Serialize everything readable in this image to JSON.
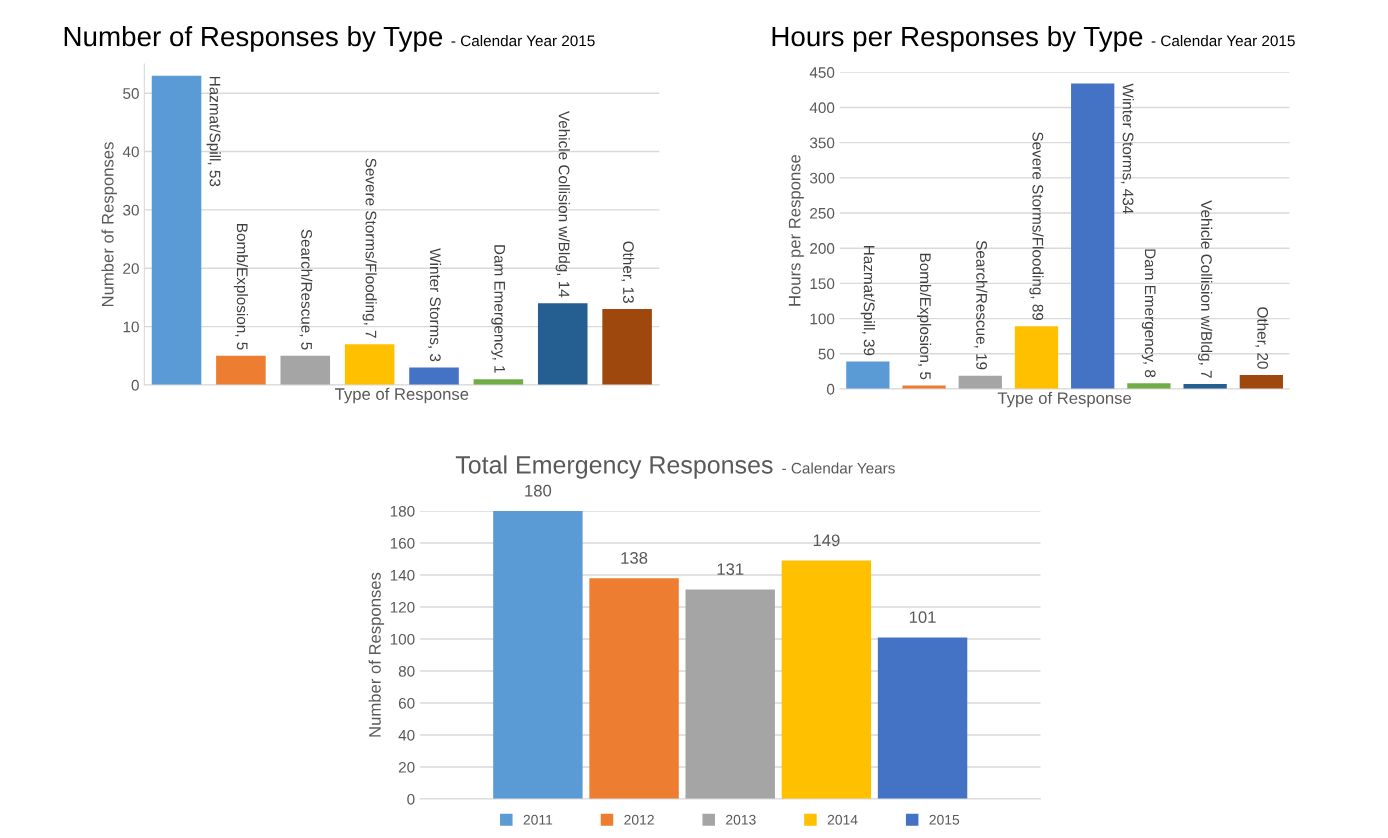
{
  "chart_data": [
    {
      "type": "bar",
      "title": "Number of Responses by Type",
      "subtitle": " - Calendar Year 2015",
      "xlabel": "Type of Response",
      "ylabel": "Number of Responses",
      "categories": [
        null,
        null,
        null,
        null,
        null,
        null,
        null,
        null
      ],
      "values": [
        53,
        5,
        5,
        7,
        3,
        1,
        14,
        13
      ],
      "colors": [
        "#5b9bd5",
        "#ed7d31",
        "#a5a5a5",
        "#ffc000",
        "#4472c4",
        "#70ad47",
        "#255e91",
        "#9e480e"
      ],
      "value_labels": [
        "Hazmat/Spill, 53",
        "Bomb/Explosion, 5",
        "Search/Rescue, 5",
        "Severe Storms/Flooding, 7",
        "Winter Storms, 3",
        "Dam Emergency, 1",
        "Vehicle Collision w/Bldg, 14",
        "Other, 13"
      ],
      "ylim": [
        0,
        55
      ],
      "yticks": [
        0,
        10,
        20,
        30,
        40,
        50
      ],
      "grid": "y",
      "tick_labels": "y"
    },
    {
      "type": "bar",
      "title": "Hours per Responses by Type",
      "subtitle": " - Calendar Year 2015",
      "xlabel": "Type of Response",
      "ylabel": "Hours per Response",
      "categories": [
        null,
        null,
        null,
        null,
        null,
        null,
        null,
        null
      ],
      "values": [
        39,
        5,
        19,
        89,
        434,
        8,
        7,
        20
      ],
      "colors": [
        "#5b9bd5",
        "#ed7d31",
        "#a5a5a5",
        "#ffc000",
        "#4472c4",
        "#70ad47",
        "#255e91",
        "#9e480e"
      ],
      "value_labels": [
        "Hazmat/Spill, 39",
        "Bomb/Explosion, 5",
        "Search/Rescue, 19",
        "Severe Storms/Flooding, 89",
        "Winter Storms, 434",
        "Dam Emergency, 8",
        "Vehicle Collision w/Bldg, 7",
        "Other, 20"
      ],
      "ylim": [
        0,
        450
      ],
      "yticks": [
        0,
        50,
        100,
        150,
        200,
        250,
        300,
        350,
        400,
        450
      ],
      "grid": "y",
      "tick_labels": "y"
    },
    {
      "type": "bar",
      "title": "Total Emergency Responses",
      "subtitle": " - Calendar Years",
      "ylabel": "Number of Responses",
      "categories": [
        null
      ],
      "series": [
        {
          "name": "2011",
          "color": "#5b9bd5",
          "values": [
            180
          ]
        },
        {
          "name": "2012",
          "color": "#ed7d31",
          "values": [
            138
          ]
        },
        {
          "name": "2013",
          "color": "#a5a5a5",
          "values": [
            131
          ]
        },
        {
          "name": "2014",
          "color": "#ffc000",
          "values": [
            149
          ]
        },
        {
          "name": "2015",
          "color": "#4472c4",
          "values": [
            101
          ]
        }
      ],
      "ylim": [
        0,
        180
      ],
      "yticks": [
        0,
        20,
        40,
        60,
        80,
        100,
        120,
        140,
        160,
        180
      ],
      "grid": "y",
      "tick_labels": "y",
      "data_labels": true,
      "legend": "bottom"
    }
  ]
}
